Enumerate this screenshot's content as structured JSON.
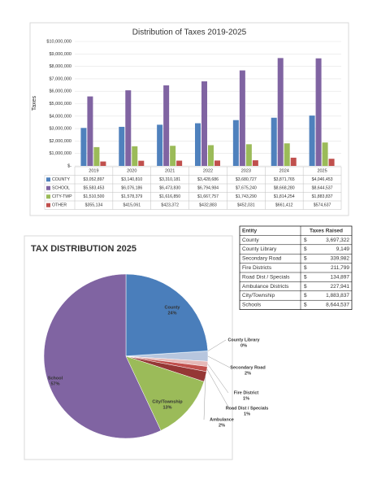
{
  "chart_data": [
    {
      "type": "bar",
      "title": "Distribution of Taxes 2019-2025",
      "y_label": "Taxes",
      "categories": [
        "2019",
        "2020",
        "2021",
        "2022",
        "2023",
        "2024",
        "2025"
      ],
      "series": [
        {
          "name": "COUNTY",
          "color": "#4f81bd",
          "values": [
            3052897,
            3140810,
            3310181,
            3428686,
            3680727,
            3871765,
            4046453
          ],
          "value_labels": [
            "$3,052,897",
            "$3,140,810",
            "$3,310,181",
            "$3,428,686",
            "$3,680,727",
            "$3,871,765",
            "$4,046,453"
          ]
        },
        {
          "name": "SCHOOL",
          "color": "#8064a2",
          "values": [
            5583453,
            6076186,
            6473830,
            6794984,
            7675240,
            8668280,
            8644537
          ],
          "value_labels": [
            "$5,583,453",
            "$6,076,186",
            "$6,473,830",
            "$6,794,984",
            "$7,675,240",
            "$8,668,280",
            "$8,644,537"
          ]
        },
        {
          "name": "CITY-TWP",
          "color": "#9bbb59",
          "values": [
            1510500,
            1578379,
            1616850,
            1667757,
            1743290,
            1814254,
            1883837
          ],
          "value_labels": [
            "$1,510,500",
            "$1,578,379",
            "$1,616,850",
            "$1,667,757",
            "$1,743,290",
            "$1,814,254",
            "$1,883,837"
          ]
        },
        {
          "name": "OTHER",
          "color": "#c0504d",
          "values": [
            355134,
            415061,
            423372,
            432883,
            452031,
            661412,
            574637
          ],
          "value_labels": [
            "$355,134",
            "$415,061",
            "$423,372",
            "$432,883",
            "$452,031",
            "$661,412",
            "$574,637"
          ]
        }
      ],
      "ylim": [
        0,
        10000000
      ],
      "yticks": [
        {
          "value": 0,
          "label": "$-"
        },
        {
          "value": 1000000,
          "label": "$1,000,000"
        },
        {
          "value": 2000000,
          "label": "$2,000,000"
        },
        {
          "value": 3000000,
          "label": "$3,000,000"
        },
        {
          "value": 4000000,
          "label": "$4,000,000"
        },
        {
          "value": 5000000,
          "label": "$5,000,000"
        },
        {
          "value": 6000000,
          "label": "$6,000,000"
        },
        {
          "value": 7000000,
          "label": "$7,000,000"
        },
        {
          "value": 8000000,
          "label": "$8,000,000"
        },
        {
          "value": 9000000,
          "label": "$9,000,000"
        },
        {
          "value": 10000000,
          "label": "$10,000,000"
        }
      ],
      "grid": true
    },
    {
      "type": "pie",
      "title": "TAX DISTRIBUTION 2025",
      "categories": [
        "County",
        "County Library",
        "Secondary Road",
        "Fire District",
        "Road Dist / Specials",
        "Ambulance",
        "City/Township",
        "School"
      ],
      "values": [
        24,
        0,
        2,
        1,
        1,
        2,
        13,
        57
      ],
      "value_labels": [
        "24%",
        "0%",
        "2%",
        "1%",
        "1%",
        "2%",
        "13%",
        "57%"
      ],
      "colors": [
        "#4a7ebb",
        "#9dc3e6",
        "#b7c6de",
        "#e6b9b8",
        "#c0504d",
        "#953735",
        "#9bbb59",
        "#8064a2"
      ]
    }
  ],
  "table": {
    "header": [
      "Entity",
      "Taxes Raised"
    ],
    "rows": [
      [
        "County",
        "$",
        "3,697,322"
      ],
      [
        "County Library",
        "$",
        "9,149"
      ],
      [
        "Secondary Road",
        "$",
        "339,982"
      ],
      [
        "Fire Districts",
        "$",
        "211,799"
      ],
      [
        "Road Dist / Specials",
        "$",
        "134,897"
      ],
      [
        "Ambulance Districts",
        "$",
        "227,941"
      ],
      [
        "City/Township",
        "$",
        "1,883,837"
      ],
      [
        "Schools",
        "$",
        "8,644,537"
      ]
    ]
  }
}
